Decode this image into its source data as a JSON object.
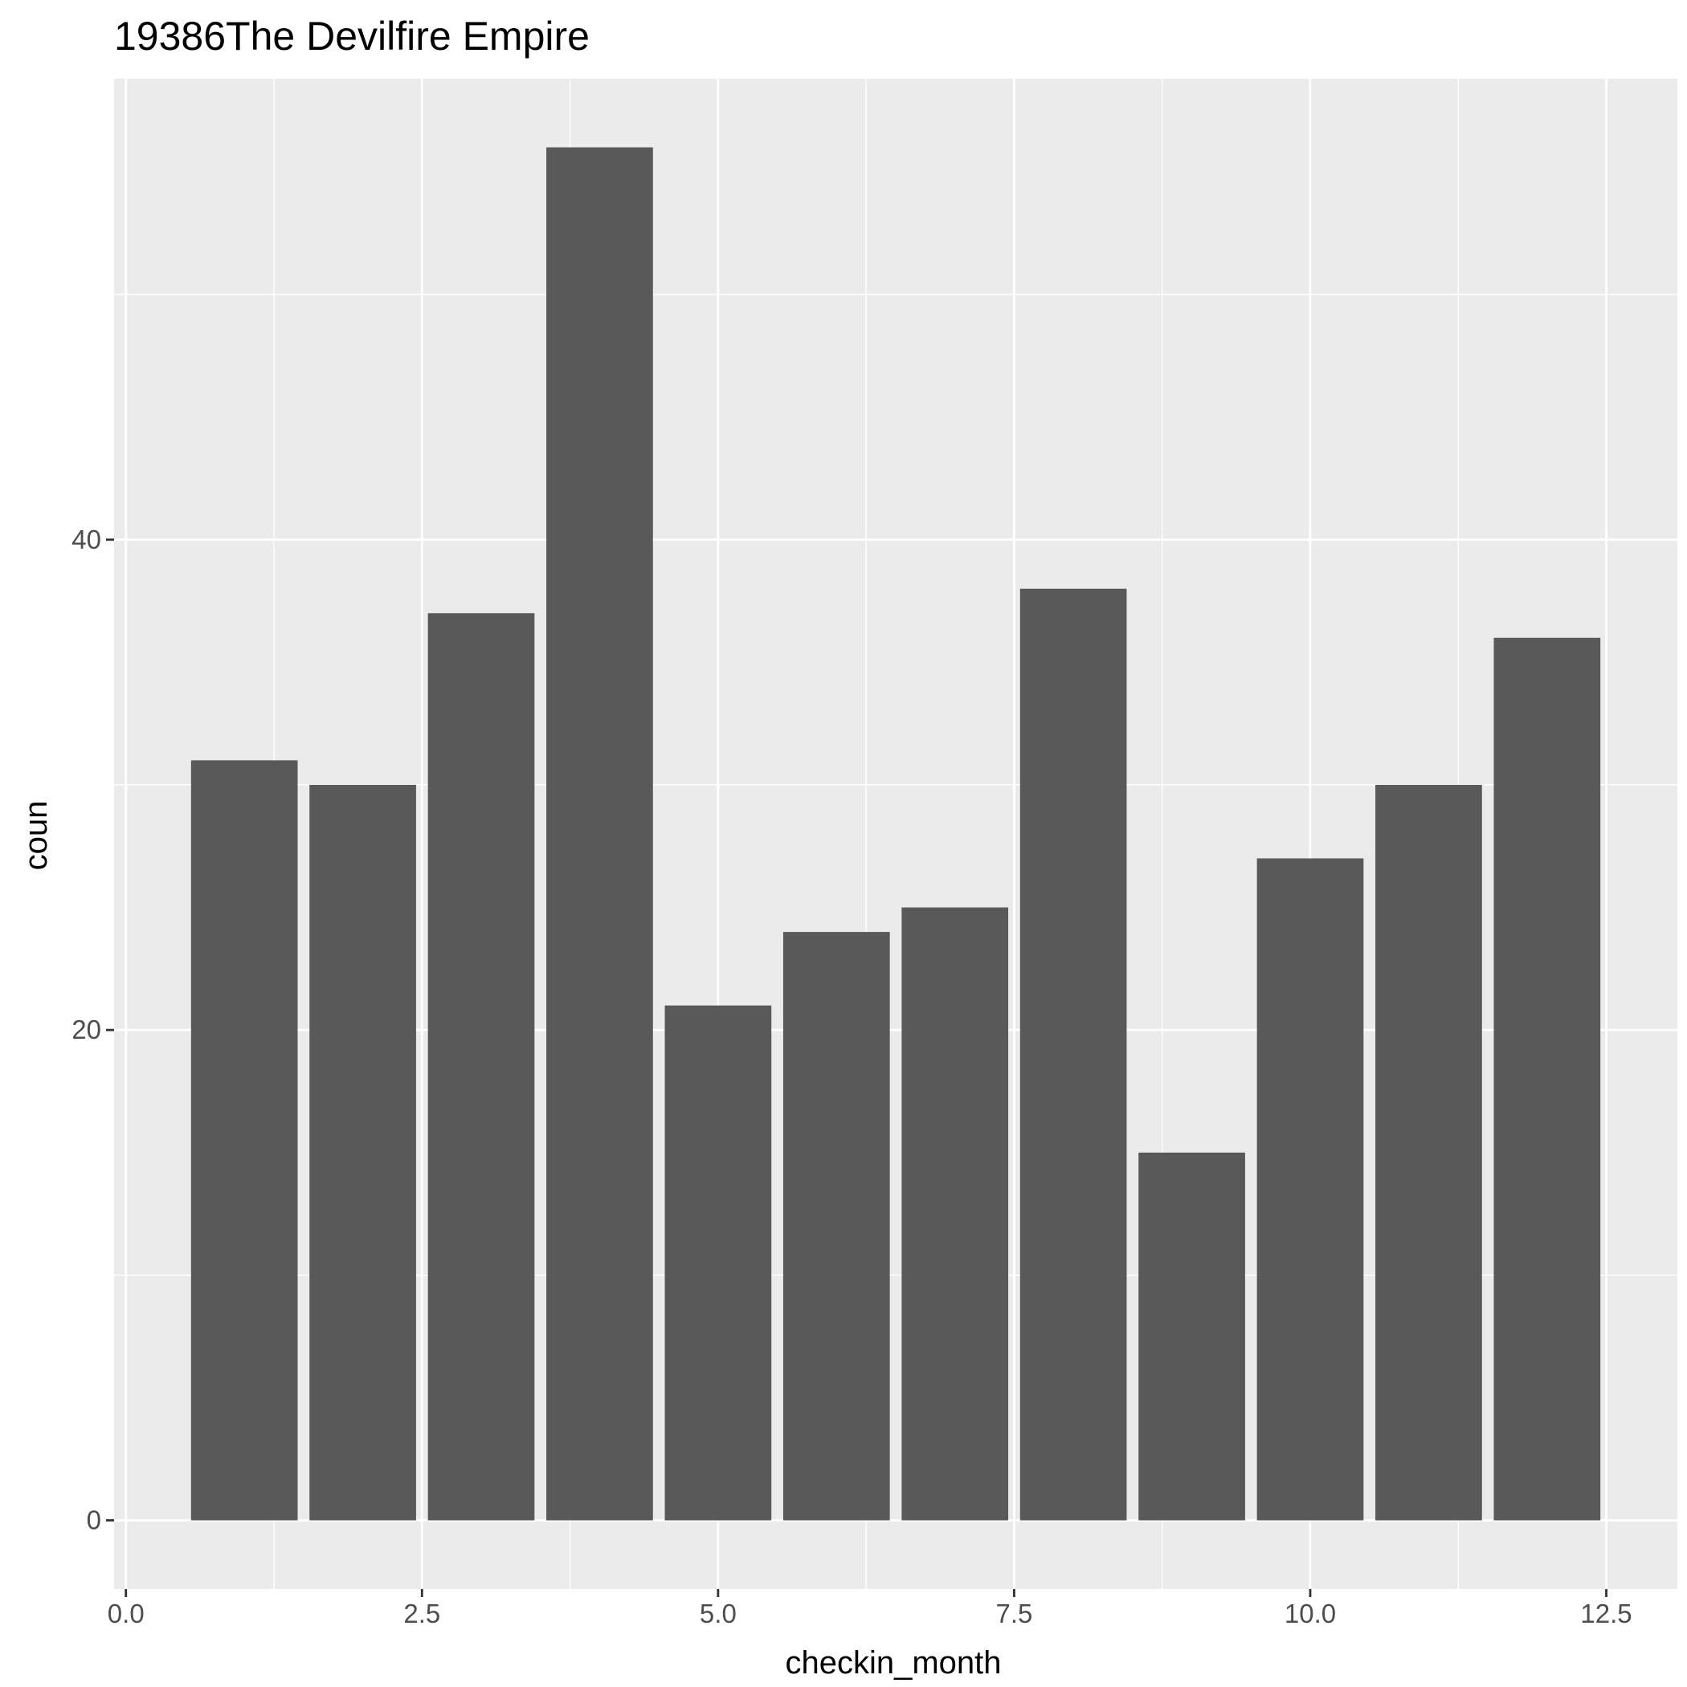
{
  "chart_data": {
    "type": "bar",
    "title": "19386The Devilfire Empire",
    "xlabel": "checkin_month",
    "ylabel": "coun",
    "x": [
      1,
      2,
      3,
      4,
      5,
      6,
      7,
      8,
      9,
      10,
      11,
      12
    ],
    "values": [
      31,
      30,
      37,
      56,
      21,
      24,
      25,
      38,
      15,
      27,
      30,
      36
    ],
    "xlim": [
      -0.1,
      13.1
    ],
    "ylim": [
      -2.8,
      58.8
    ],
    "x_ticks": [
      0,
      2.5,
      5,
      7.5,
      10,
      12.5
    ],
    "x_tick_labels": [
      "0.0",
      "2.5",
      "5.0",
      "7.5",
      "10.0",
      "12.5"
    ],
    "y_ticks": [
      0,
      20,
      40
    ],
    "y_tick_labels": [
      "0",
      "20",
      "40"
    ],
    "bar_width": 0.9,
    "grid": true,
    "colors": {
      "panel_background": "#ebebeb",
      "grid": "#ffffff",
      "bar_fill": "#595959",
      "tick_text": "#4d4d4d",
      "axis_tick": "#333333"
    }
  }
}
